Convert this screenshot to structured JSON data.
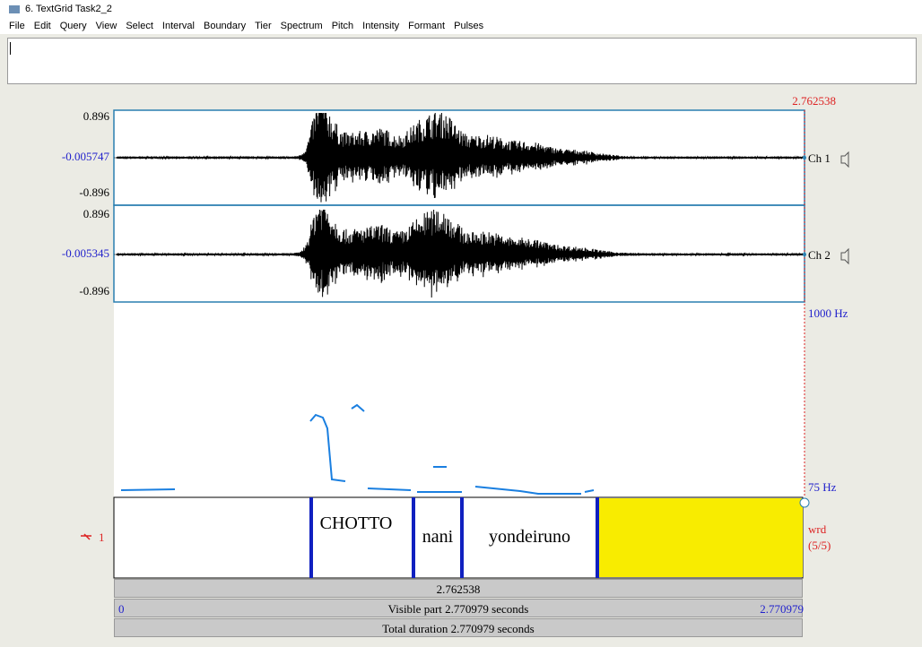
{
  "window": {
    "title": "6. TextGrid Task2_2",
    "menu": [
      "File",
      "Edit",
      "Query",
      "View",
      "Select",
      "Interval",
      "Boundary",
      "Tier",
      "Spectrum",
      "Pitch",
      "Intensity",
      "Formant",
      "Pulses"
    ]
  },
  "editor": {
    "cursor_time": "2.762538",
    "channels": [
      {
        "max": "0.896",
        "mid": "-0.005747",
        "min": "-0.896",
        "name": "Ch 1"
      },
      {
        "max": "0.896",
        "mid": "-0.005345",
        "min": "-0.896",
        "name": "Ch 2"
      }
    ],
    "pitch_top": "1000 Hz",
    "pitch_bottom": "75 Hz",
    "tier": {
      "number": "1",
      "name": "wrd",
      "count": "(5/5)",
      "intervals": [
        "CHOTTO",
        "nani",
        "yondeiruno"
      ]
    },
    "bars": {
      "selection": "2.762538",
      "visible_start": "0",
      "visible": "Visible part 2.770979 seconds",
      "visible_end": "2.770979",
      "total": "Total duration 2.770979 seconds"
    }
  }
}
